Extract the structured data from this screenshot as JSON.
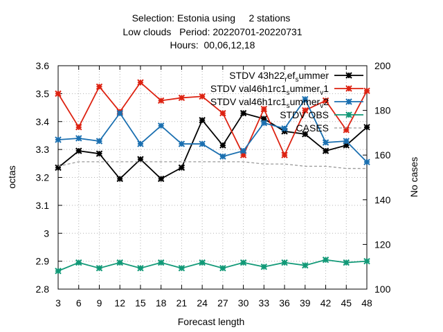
{
  "chart_data": {
    "type": "line",
    "title_lines": [
      "Selection: Estonia using     2 stations",
      "Low clouds   Period: 20220701-20220731",
      "Hours:  00,06,12,18"
    ],
    "xlabel": "Forecast length",
    "ylabel": "octas",
    "y2label": "No cases",
    "x": [
      3,
      6,
      9,
      12,
      15,
      18,
      21,
      24,
      27,
      30,
      33,
      36,
      39,
      42,
      45,
      48
    ],
    "xlim": [
      3,
      48
    ],
    "ylim": [
      2.8,
      3.6
    ],
    "y2lim": [
      100,
      200
    ],
    "yticks": [
      "2.8",
      "2.9",
      "3",
      "3.1",
      "3.2",
      "3.3",
      "3.4",
      "3.5",
      "3.6"
    ],
    "y2ticks": [
      "100",
      "120",
      "140",
      "160",
      "180",
      "200"
    ],
    "grid": true,
    "legend_position": "top-right",
    "series": [
      {
        "name": "STDV 43h22_ref_summer",
        "legend_main": "STDV 43h22",
        "legend_parts": [
          [
            "sub",
            "r"
          ],
          [
            "norm",
            "ef"
          ],
          [
            "sub",
            "s"
          ],
          [
            "norm",
            "ummer"
          ]
        ],
        "color": "#000000",
        "marker": "star",
        "axis": "y",
        "values": [
          3.235,
          3.295,
          3.285,
          3.195,
          3.265,
          3.195,
          3.235,
          3.405,
          3.315,
          3.43,
          3.41,
          3.365,
          3.355,
          3.295,
          3.315,
          3.38
        ]
      },
      {
        "name": "STDV val46h1rc1_summer_v1",
        "legend_main": "STDV val46h1rc1",
        "legend_parts": [
          [
            "sub",
            "s"
          ],
          [
            "norm",
            "ummer"
          ],
          [
            "sub",
            "v"
          ],
          [
            "norm",
            "1"
          ]
        ],
        "color": "#dd2211",
        "marker": "star",
        "axis": "y",
        "values": [
          3.5,
          3.38,
          3.525,
          3.435,
          3.54,
          3.475,
          3.485,
          3.49,
          3.43,
          3.28,
          3.445,
          3.28,
          3.44,
          3.475,
          3.37,
          3.51
        ]
      },
      {
        "name": "STDV val46h1rc1_summer_v2",
        "legend_main": "STDV val46h1rc1",
        "legend_parts": [
          [
            "sub",
            "s"
          ],
          [
            "norm",
            "ummer"
          ],
          [
            "sub",
            "v"
          ],
          [
            "norm",
            "2"
          ]
        ],
        "color": "#1a6fb0",
        "marker": "star",
        "axis": "y",
        "values": [
          3.335,
          3.34,
          3.33,
          3.43,
          3.32,
          3.385,
          3.32,
          3.32,
          3.275,
          3.295,
          3.395,
          3.375,
          3.48,
          3.325,
          3.33,
          3.255
        ]
      },
      {
        "name": "STDV OBS",
        "legend_main": "STDV OBS",
        "legend_parts": [],
        "color": "#119977",
        "marker": "star",
        "axis": "y",
        "values": [
          2.865,
          2.895,
          2.875,
          2.895,
          2.875,
          2.895,
          2.875,
          2.895,
          2.875,
          2.895,
          2.88,
          2.895,
          2.885,
          2.905,
          2.895,
          2.9
        ]
      },
      {
        "name": "CASES",
        "legend_main": "CASES",
        "legend_parts": [],
        "color": "#999999",
        "marker": "none",
        "dashed": true,
        "axis": "y2",
        "values": [
          155,
          157,
          157,
          157,
          157,
          157,
          157,
          157,
          157,
          157,
          156,
          156,
          155,
          155,
          154,
          154
        ]
      }
    ]
  }
}
